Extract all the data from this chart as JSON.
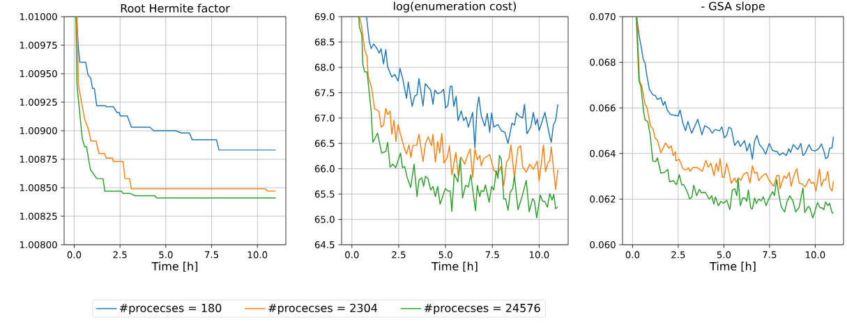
{
  "chart_data": [
    {
      "type": "line",
      "title": "Root Hermite factor",
      "xlabel": "Time [h]",
      "xlim": [
        -0.55,
        11.55
      ],
      "ylim": [
        1.008,
        1.01
      ],
      "grid": true,
      "legend": "bottom",
      "xticks": [
        {
          "value": 0,
          "label": "0.0"
        },
        {
          "value": 2.5,
          "label": "2.5"
        },
        {
          "value": 5,
          "label": "5.0"
        },
        {
          "value": 7.5,
          "label": "7.5"
        },
        {
          "value": 10,
          "label": "10.0"
        }
      ],
      "yticks": [
        {
          "value": 1.008,
          "label": "1.00800"
        },
        {
          "value": 1.00825,
          "label": "1.00825"
        },
        {
          "value": 1.0085,
          "label": "1.00850"
        },
        {
          "value": 1.00875,
          "label": "1.00875"
        },
        {
          "value": 1.009,
          "label": "1.00900"
        },
        {
          "value": 1.00925,
          "label": "1.00925"
        },
        {
          "value": 1.0095,
          "label": "1.00950"
        },
        {
          "value": 1.00975,
          "label": "1.00975"
        },
        {
          "value": 1.01,
          "label": "1.01000"
        }
      ],
      "series": [
        {
          "name": "#procecses = 180",
          "color": "#1f77b4",
          "x": [
            0.13,
            0.23,
            0.31,
            0.63,
            0.75,
            0.9,
            1.0,
            1.1,
            1.23,
            1.7,
            1.76,
            2.14,
            2.33,
            2.45,
            2.52,
            2.9,
            3.12,
            4.13,
            4.34,
            5.53,
            5.85,
            6.29,
            6.44,
            7.77,
            7.9,
            11.0
          ],
          "values": [
            1.01,
            1.00972,
            1.0096,
            1.0096,
            1.00949,
            1.00946,
            1.00937,
            1.00937,
            1.00922,
            1.00922,
            1.00921,
            1.00921,
            1.00916,
            1.00916,
            1.00913,
            1.00913,
            1.00903,
            1.00903,
            1.009,
            1.009,
            1.00898,
            1.00898,
            1.00892,
            1.00892,
            1.00883,
            1.00883
          ]
        },
        {
          "name": "#procecses = 2304",
          "color": "#ff7f0e",
          "x": [
            0.15,
            0.23,
            0.57,
            0.78,
            0.91,
            1.19,
            1.35,
            1.64,
            1.76,
            2.08,
            2.14,
            2.67,
            2.77,
            3.02,
            3.12,
            10.42,
            10.57,
            11.0
          ],
          "values": [
            1.01,
            1.0094,
            1.0091,
            1.00901,
            1.00891,
            1.00891,
            1.0088,
            1.0088,
            1.00876,
            1.00876,
            1.00873,
            1.00873,
            1.00858,
            1.00858,
            1.00849,
            1.00849,
            1.00847,
            1.00847
          ]
        },
        {
          "name": "#procecses = 24576",
          "color": "#2ca02c",
          "x": [
            0.09,
            0.15,
            0.44,
            0.57,
            0.67,
            0.88,
            1.23,
            1.57,
            1.67,
            2.58,
            2.67,
            3.04,
            3.33,
            4.4,
            4.5,
            11.0
          ],
          "values": [
            1.01,
            1.0094,
            1.00893,
            1.00886,
            1.00886,
            1.00866,
            1.00858,
            1.00858,
            1.00847,
            1.00847,
            1.00845,
            1.00845,
            1.00843,
            1.00843,
            1.00841,
            1.00841
          ]
        }
      ]
    },
    {
      "type": "line",
      "title": "log(enumeration cost)",
      "xlabel": "Time [h]",
      "xlim": [
        -0.55,
        11.55
      ],
      "ylim": [
        64.5,
        69.0
      ],
      "grid": true,
      "xticks": [
        {
          "value": 0,
          "label": "0.0"
        },
        {
          "value": 2.5,
          "label": "2.5"
        },
        {
          "value": 5,
          "label": "5.0"
        },
        {
          "value": 7.5,
          "label": "7.5"
        },
        {
          "value": 10,
          "label": "10.0"
        }
      ],
      "yticks": [
        {
          "value": 64.5,
          "label": "64.5"
        },
        {
          "value": 65.0,
          "label": "65.0"
        },
        {
          "value": 65.5,
          "label": "65.5"
        },
        {
          "value": 66.0,
          "label": "66.0"
        },
        {
          "value": 66.5,
          "label": "66.5"
        },
        {
          "value": 67.0,
          "label": "67.0"
        },
        {
          "value": 67.5,
          "label": "67.5"
        },
        {
          "value": 68.0,
          "label": "68.0"
        },
        {
          "value": 68.5,
          "label": "68.5"
        },
        {
          "value": 69.0,
          "label": "69.0"
        }
      ],
      "series": [
        {
          "color": "#1f77b4",
          "x": [
            0.78,
            0.93,
            1.03,
            1.16,
            1.31,
            1.46,
            1.56,
            1.69,
            1.81,
            1.91,
            2.13,
            2.29,
            2.47,
            2.57,
            2.7,
            2.92,
            3.01,
            3.22,
            3.35,
            3.48,
            3.58,
            3.8,
            3.92,
            4.21,
            4.33,
            4.43,
            4.58,
            4.77,
            4.9,
            5.0,
            5.13,
            5.25,
            5.34,
            5.44,
            5.57,
            5.67,
            5.84,
            5.97,
            6.1,
            6.22,
            6.45,
            6.57,
            6.68,
            6.78,
            6.91,
            7.1,
            7.23,
            7.36,
            7.46,
            7.58,
            7.8,
            7.98,
            8.17,
            8.34,
            8.55,
            8.68,
            8.8,
            8.93,
            9.12,
            9.22,
            9.35,
            9.56,
            9.69,
            9.81,
            9.9,
            10.0,
            10.31,
            10.57,
            10.65,
            10.76,
            10.88,
            11.0
          ],
          "values": [
            69.0,
            68.51,
            68.37,
            68.46,
            68.39,
            68.28,
            68.37,
            68.07,
            68.35,
            68.01,
            67.81,
            67.86,
            67.73,
            67.98,
            67.8,
            67.39,
            67.71,
            67.23,
            67.43,
            67.46,
            67.78,
            67.24,
            67.68,
            67.55,
            67.27,
            67.55,
            67.48,
            67.51,
            67.57,
            67.2,
            67.25,
            67.62,
            67.63,
            67.23,
            67.43,
            66.95,
            67.14,
            66.95,
            67.02,
            66.82,
            67.11,
            66.41,
            67.18,
            67.42,
            67.04,
            66.84,
            67.09,
            66.72,
            67.1,
            66.82,
            66.87,
            66.75,
            66.72,
            66.5,
            66.9,
            66.86,
            67.1,
            67.04,
            67.0,
            67.27,
            66.69,
            66.83,
            67.11,
            66.87,
            66.98,
            66.75,
            67.11,
            66.63,
            66.52,
            66.86,
            66.95,
            67.27
          ]
        },
        {
          "color": "#ff7f0e",
          "x": [
            0.4,
            0.53,
            0.68,
            0.81,
            0.87,
            1.06,
            1.21,
            1.44,
            1.56,
            1.69,
            1.81,
            1.91,
            2.04,
            2.13,
            2.25,
            2.35,
            2.47,
            2.6,
            2.82,
            2.92,
            3.05,
            3.15,
            3.26,
            3.46,
            3.58,
            3.8,
            3.93,
            4.08,
            4.25,
            4.33,
            4.46,
            4.58,
            4.69,
            4.8,
            4.92,
            5.09,
            5.21,
            5.34,
            5.55,
            5.69,
            5.82,
            6.03,
            6.16,
            6.32,
            6.45,
            6.57,
            6.7,
            6.83,
            6.91,
            7.04,
            7.36,
            7.58,
            7.8,
            7.96,
            8.11,
            8.26,
            8.39,
            8.49,
            8.68,
            8.87,
            9.01,
            9.12,
            9.31,
            9.5,
            9.69,
            9.9,
            10.0,
            10.13,
            10.23,
            10.34,
            10.48,
            10.57,
            10.65,
            10.88,
            11.0
          ],
          "values": [
            69.0,
            68.78,
            68.35,
            68.21,
            67.82,
            67.59,
            67.18,
            67.14,
            66.82,
            66.86,
            67.19,
            67.07,
            67.14,
            66.68,
            66.96,
            66.54,
            66.87,
            66.67,
            66.38,
            66.29,
            66.47,
            66.22,
            66.46,
            66.46,
            66.68,
            66.14,
            66.5,
            66.63,
            66.45,
            66.68,
            66.13,
            66.54,
            66.31,
            66.7,
            66.11,
            66.22,
            66.45,
            65.88,
            66.32,
            65.85,
            66.23,
            66.09,
            66.25,
            66.39,
            65.83,
            66.39,
            66.18,
            66.26,
            66.06,
            66.2,
            66.28,
            65.97,
            65.9,
            66.04,
            65.67,
            66.13,
            66.2,
            66.47,
            65.83,
            66.41,
            66.45,
            66.04,
            65.93,
            66.09,
            65.99,
            66.15,
            65.76,
            66.15,
            66.47,
            65.94,
            66.13,
            66.15,
            66.43,
            65.59,
            65.98
          ]
        },
        {
          "color": "#2ca02c",
          "x": [
            0.37,
            0.4,
            0.53,
            0.58,
            0.68,
            0.81,
            1.03,
            1.12,
            1.37,
            1.59,
            1.81,
            1.91,
            2.04,
            2.19,
            2.34,
            2.6,
            2.7,
            2.82,
            2.95,
            3.14,
            3.32,
            3.48,
            3.58,
            3.73,
            3.83,
            3.93,
            4.06,
            4.21,
            4.33,
            4.46,
            4.58,
            4.71,
            4.99,
            5.13,
            5.25,
            5.34,
            5.47,
            5.66,
            5.79,
            5.91,
            6.07,
            6.22,
            6.35,
            6.6,
            6.7,
            6.83,
            6.91,
            7.04,
            7.13,
            7.33,
            7.46,
            7.58,
            7.71,
            7.8,
            7.88,
            7.98,
            8.11,
            8.21,
            8.34,
            8.46,
            8.59,
            8.68,
            8.87,
            9.12,
            9.31,
            9.47,
            9.65,
            9.75,
            9.87,
            10.06,
            10.19,
            10.31,
            10.44,
            10.57,
            10.69,
            10.78,
            10.88,
            11.0
          ],
          "values": [
            69.0,
            68.8,
            68.64,
            68.07,
            67.91,
            67.91,
            67.14,
            66.52,
            66.7,
            66.31,
            66.34,
            66.52,
            66.03,
            66.09,
            66.02,
            66.31,
            66.02,
            66.04,
            65.83,
            65.63,
            66.09,
            65.45,
            65.77,
            65.82,
            65.65,
            65.85,
            65.81,
            65.58,
            65.65,
            65.45,
            65.65,
            65.3,
            65.61,
            65.56,
            65.56,
            65.16,
            65.9,
            65.74,
            66.2,
            65.42,
            65.67,
            65.64,
            65.88,
            65.17,
            65.67,
            65.45,
            65.57,
            65.55,
            65.68,
            65.34,
            65.65,
            65.58,
            65.96,
            65.81,
            66.26,
            66.19,
            65.4,
            65.41,
            65.18,
            65.54,
            65.61,
            65.86,
            65.19,
            65.49,
            65.77,
            65.15,
            65.41,
            65.36,
            65.03,
            65.48,
            65.36,
            65.35,
            65.24,
            65.51,
            65.38,
            65.49,
            65.21,
            65.25
          ]
        }
      ]
    },
    {
      "type": "line",
      "title": "- GSA slope",
      "xlabel": "Time [h]",
      "xlim": [
        -0.55,
        11.55
      ],
      "ylim": [
        0.06,
        0.07
      ],
      "grid": true,
      "xticks": [
        {
          "value": 0,
          "label": "0.0"
        },
        {
          "value": 2.5,
          "label": "2.5"
        },
        {
          "value": 5,
          "label": "5.0"
        },
        {
          "value": 7.5,
          "label": "7.5"
        },
        {
          "value": 10,
          "label": "10.0"
        }
      ],
      "yticks": [
        {
          "value": 0.06,
          "label": "0.060"
        },
        {
          "value": 0.062,
          "label": "0.062"
        },
        {
          "value": 0.064,
          "label": "0.064"
        },
        {
          "value": 0.066,
          "label": "0.066"
        },
        {
          "value": 0.068,
          "label": "0.068"
        },
        {
          "value": 0.07,
          "label": "0.070"
        }
      ],
      "series": [
        {
          "color": "#1f77b4",
          "x": [
            0.23,
            0.35,
            0.48,
            0.58,
            0.69,
            0.79,
            0.92,
            1.11,
            1.24,
            1.36,
            1.55,
            1.68,
            1.77,
            1.9,
            2.07,
            2.35,
            2.5,
            2.6,
            2.75,
            2.9,
            3.03,
            3.23,
            3.38,
            3.57,
            3.8,
            3.95,
            4.2,
            4.36,
            4.51,
            4.77,
            4.89,
            5.02,
            5.15,
            5.27,
            5.4,
            5.59,
            5.78,
            5.9,
            6.13,
            6.26,
            6.41,
            6.56,
            6.68,
            6.81,
            6.95,
            7.14,
            7.29,
            7.48,
            7.67,
            7.92,
            8.04,
            8.23,
            8.42,
            8.55,
            8.65,
            8.8,
            9.05,
            9.21,
            9.33,
            9.43,
            9.66,
            9.81,
            10.0,
            10.19,
            10.34,
            10.5,
            10.57,
            10.69,
            10.79,
            10.92,
            11.0
          ],
          "values": [
            0.07,
            0.06921,
            0.06865,
            0.06814,
            0.06794,
            0.06738,
            0.06682,
            0.06657,
            0.06655,
            0.06637,
            0.06645,
            0.06611,
            0.06628,
            0.06591,
            0.06571,
            0.06567,
            0.06565,
            0.06591,
            0.06535,
            0.065,
            0.0654,
            0.06489,
            0.06515,
            0.0655,
            0.06482,
            0.06522,
            0.0651,
            0.06489,
            0.06505,
            0.065,
            0.06517,
            0.06469,
            0.06479,
            0.06515,
            0.0651,
            0.06436,
            0.06456,
            0.06431,
            0.06456,
            0.06411,
            0.06444,
            0.06375,
            0.06454,
            0.06479,
            0.06439,
            0.06421,
            0.06397,
            0.06444,
            0.06413,
            0.06408,
            0.06393,
            0.06403,
            0.06391,
            0.06421,
            0.06405,
            0.06439,
            0.06418,
            0.06444,
            0.06391,
            0.06398,
            0.06439,
            0.06415,
            0.06411,
            0.06421,
            0.06442,
            0.06405,
            0.06378,
            0.06383,
            0.06423,
            0.06425,
            0.06474
          ]
        },
        {
          "color": "#ff7f0e",
          "x": [
            0.23,
            0.38,
            0.5,
            0.67,
            0.79,
            0.98,
            1.11,
            1.24,
            1.36,
            1.55,
            1.8,
            2.0,
            2.12,
            2.22,
            2.35,
            2.37,
            2.56,
            2.75,
            2.9,
            3.06,
            3.15,
            3.32,
            3.57,
            3.82,
            4.01,
            4.14,
            4.29,
            4.46,
            4.58,
            4.7,
            4.79,
            4.92,
            5.02,
            5.15,
            5.3,
            5.4,
            5.59,
            5.68,
            5.78,
            5.93,
            6.09,
            6.28,
            6.43,
            6.56,
            6.68,
            6.81,
            6.91,
            7.04,
            7.19,
            7.31,
            7.42,
            7.6,
            7.73,
            7.89,
            8.02,
            8.07,
            8.3,
            8.42,
            8.58,
            8.68,
            8.83,
            8.99,
            9.12,
            9.28,
            9.46,
            9.66,
            9.79,
            9.94,
            10.04,
            10.23,
            10.34,
            10.47,
            10.57,
            10.69,
            10.79,
            10.92,
            11.0
          ],
          "values": [
            0.07,
            0.06718,
            0.06697,
            0.06621,
            0.06601,
            0.0652,
            0.0651,
            0.06466,
            0.06459,
            0.06403,
            0.06446,
            0.06423,
            0.06434,
            0.06391,
            0.06408,
            0.06368,
            0.06375,
            0.06334,
            0.06327,
            0.06337,
            0.06322,
            0.0634,
            0.06337,
            0.06322,
            0.0637,
            0.0634,
            0.06357,
            0.06303,
            0.06357,
            0.06322,
            0.06378,
            0.06296,
            0.06296,
            0.06357,
            0.06312,
            0.06269,
            0.06293,
            0.06273,
            0.06293,
            0.06283,
            0.0631,
            0.06317,
            0.06271,
            0.06347,
            0.06314,
            0.06317,
            0.06281,
            0.06296,
            0.06307,
            0.06312,
            0.06291,
            0.06269,
            0.06256,
            0.06303,
            0.06303,
            0.06246,
            0.06302,
            0.06291,
            0.06317,
            0.06256,
            0.06302,
            0.06334,
            0.06271,
            0.06266,
            0.06253,
            0.06289,
            0.06269,
            0.06273,
            0.06235,
            0.06332,
            0.06256,
            0.06286,
            0.06283,
            0.06322,
            0.06253,
            0.06235,
            0.06279
          ]
        },
        {
          "color": "#2ca02c",
          "x": [
            0.2,
            0.35,
            0.45,
            0.61,
            0.69,
            0.83,
            0.96,
            1.11,
            1.26,
            1.36,
            1.55,
            1.74,
            1.93,
            2.02,
            2.24,
            2.4,
            2.56,
            2.69,
            2.81,
            3.0,
            3.13,
            3.25,
            3.35,
            3.51,
            3.66,
            3.76,
            3.98,
            4.2,
            4.33,
            4.45,
            4.54,
            4.7,
            4.83,
            4.99,
            5.15,
            5.33,
            5.46,
            5.59,
            5.71,
            5.78,
            5.9,
            6.03,
            6.15,
            6.25,
            6.34,
            6.47,
            6.56,
            6.68,
            6.78,
            6.91,
            7.04,
            7.16,
            7.31,
            7.44,
            7.67,
            7.77,
            7.89,
            8.02,
            8.15,
            8.33,
            8.45,
            8.61,
            8.78,
            8.93,
            9.12,
            9.33,
            9.43,
            9.62,
            9.71,
            9.87,
            10.0,
            10.13,
            10.25,
            10.38,
            10.47,
            10.57,
            10.69,
            10.79,
            10.92,
            11.0
          ],
          "values": [
            0.07,
            0.06718,
            0.06697,
            0.06581,
            0.06547,
            0.0654,
            0.06484,
            0.06367,
            0.06364,
            0.06381,
            0.06314,
            0.06317,
            0.0633,
            0.06276,
            0.06281,
            0.06263,
            0.06307,
            0.06263,
            0.06263,
            0.0623,
            0.062,
            0.0621,
            0.06261,
            0.06215,
            0.06243,
            0.06228,
            0.0623,
            0.062,
            0.06215,
            0.06178,
            0.0621,
            0.06171,
            0.0619,
            0.06182,
            0.06195,
            0.06154,
            0.06239,
            0.06246,
            0.06215,
            0.06289,
            0.06171,
            0.06205,
            0.06205,
            0.0619,
            0.0624,
            0.06161,
            0.06157,
            0.06205,
            0.06182,
            0.062,
            0.06192,
            0.0621,
            0.06171,
            0.06198,
            0.06233,
            0.06215,
            0.06286,
            0.06215,
            0.06164,
            0.06144,
            0.06188,
            0.06215,
            0.06192,
            0.06144,
            0.06164,
            0.06249,
            0.06141,
            0.06168,
            0.06161,
            0.06117,
            0.06151,
            0.06185,
            0.06164,
            0.06161,
            0.06154,
            0.06188,
            0.06171,
            0.06182,
            0.06141,
            0.06138
          ]
        }
      ]
    }
  ]
}
